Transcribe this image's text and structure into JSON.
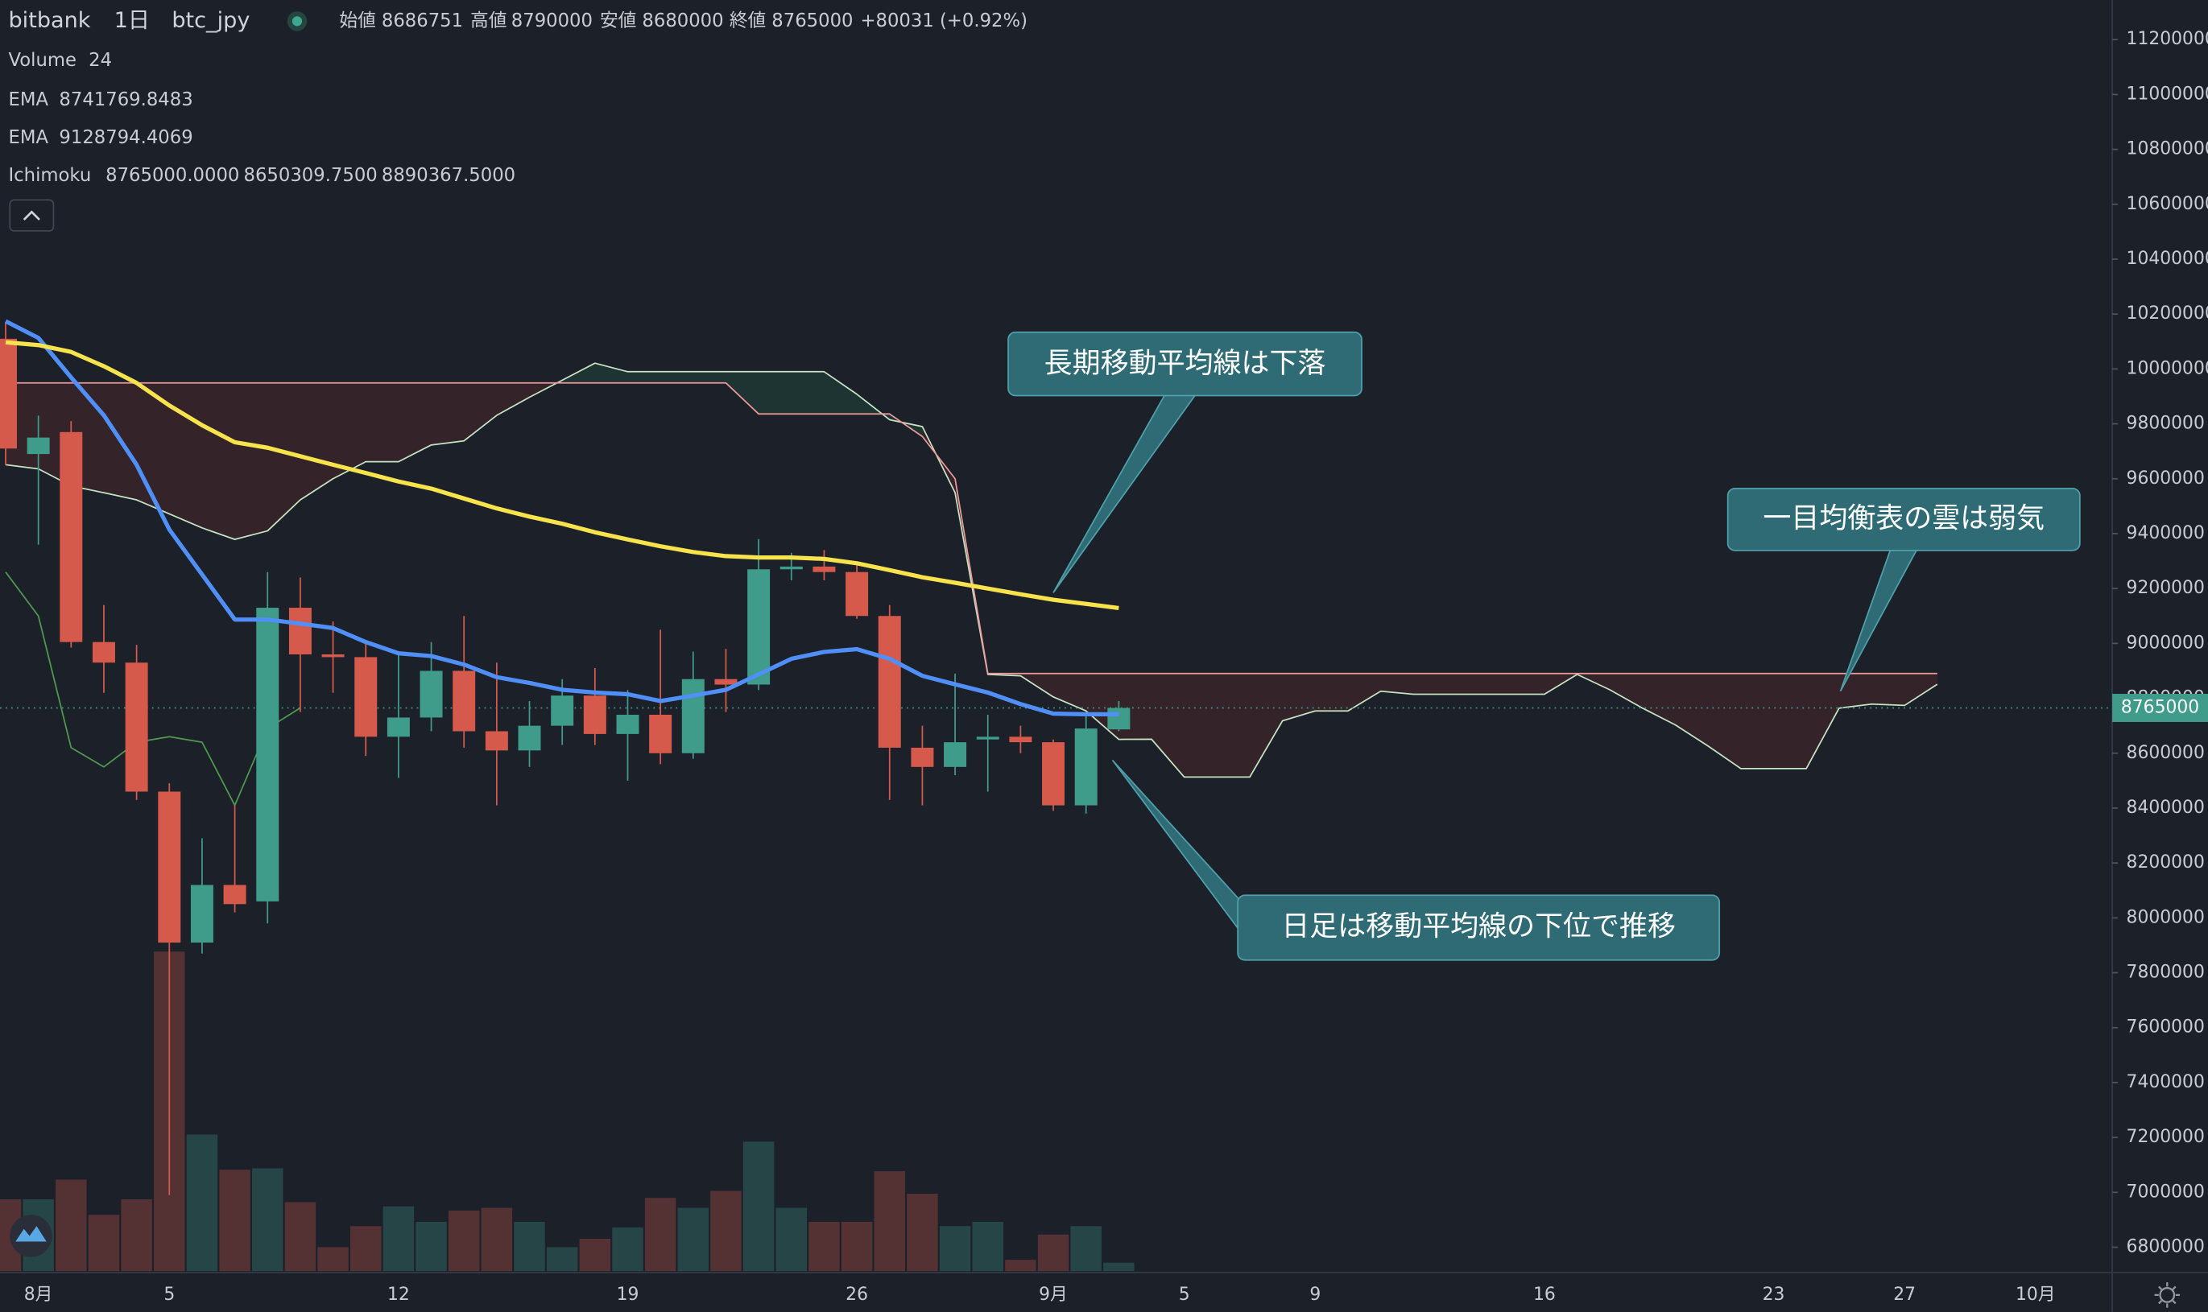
{
  "chart_data": {
    "type": "candlestick",
    "exchange": "bitbank",
    "interval": "1日",
    "symbol": "btc_jpy",
    "ohlc_names": [
      "始値",
      "高値",
      "安値",
      "終値"
    ],
    "change_label": "+80031 (+0.92%)",
    "categories": [
      null,
      "8月",
      null,
      null,
      null,
      "5",
      null,
      null,
      null,
      null,
      null,
      null,
      "12",
      null,
      null,
      null,
      null,
      null,
      null,
      "19",
      null,
      null,
      null,
      null,
      null,
      null,
      "26",
      null,
      null,
      null,
      null,
      null,
      "9月",
      null,
      null,
      null,
      "5",
      null,
      null,
      null,
      "9",
      null,
      null,
      null,
      null,
      null,
      null,
      "16",
      null,
      null,
      null,
      null,
      null,
      null,
      "23",
      null,
      null,
      null,
      "27",
      null,
      null,
      null,
      "10月",
      null,
      null
    ],
    "open": [
      10110000,
      9690000,
      9770000,
      9005000,
      8930000,
      8460000,
      7910000,
      8120000,
      8060000,
      9130000,
      8960000,
      8950000,
      8660000,
      8730000,
      8900000,
      8680000,
      8610000,
      8700000,
      8810000,
      8670000,
      8740000,
      8600000,
      8870000,
      8850000,
      9270000,
      9280000,
      9260000,
      9100000,
      8620000,
      8550000,
      8650000,
      8660000,
      8640000,
      8410000,
      8686751,
      null,
      null,
      null,
      null,
      null,
      null,
      null,
      null,
      null,
      null,
      null,
      null,
      null,
      null,
      null,
      null,
      null,
      null,
      null,
      null,
      null,
      null,
      null,
      null,
      null,
      null,
      null,
      null,
      null,
      null
    ],
    "high": [
      10170000,
      9830000,
      9810000,
      9140000,
      8995000,
      8490000,
      8290000,
      8410000,
      9260000,
      9240000,
      9080000,
      9010000,
      8970000,
      9005000,
      9100000,
      8930000,
      8790000,
      8870000,
      8910000,
      8830000,
      9050000,
      8970000,
      8980000,
      9380000,
      9330000,
      9340000,
      9290000,
      9140000,
      8700000,
      8890000,
      8740000,
      8700000,
      8650000,
      8740000,
      8790000,
      null,
      null,
      null,
      null,
      null,
      null,
      null,
      null,
      null,
      null,
      null,
      null,
      null,
      null,
      null,
      null,
      null,
      null,
      null,
      null,
      null,
      null,
      null,
      null,
      null,
      null,
      null,
      null,
      null,
      null
    ],
    "low": [
      9650000,
      9360000,
      8985000,
      8820000,
      8430000,
      6990000,
      7870000,
      8020000,
      7980000,
      8750000,
      8820000,
      8590000,
      8510000,
      8680000,
      8620000,
      8410000,
      8550000,
      8630000,
      8630000,
      8500000,
      8560000,
      8580000,
      8750000,
      8830000,
      9230000,
      9230000,
      9090000,
      8430000,
      8410000,
      8520000,
      8460000,
      8600000,
      8390000,
      8380000,
      8680000,
      null,
      null,
      null,
      null,
      null,
      null,
      null,
      null,
      null,
      null,
      null,
      null,
      null,
      null,
      null,
      null,
      null,
      null,
      null,
      null,
      null,
      null,
      null,
      null,
      null,
      null,
      null,
      null,
      null,
      null
    ],
    "close": [
      9710000,
      9750000,
      9005000,
      8930000,
      8460000,
      7910000,
      8120000,
      8050000,
      9130000,
      8960000,
      8950000,
      8660000,
      8730000,
      8900000,
      8680000,
      8610000,
      8700000,
      8810000,
      8670000,
      8740000,
      8600000,
      8870000,
      8850000,
      9270000,
      9280000,
      9260000,
      9100000,
      8620000,
      8550000,
      8640000,
      8660000,
      8640000,
      8410000,
      8690000,
      8765000,
      null,
      null,
      null,
      null,
      null,
      null,
      null,
      null,
      null,
      null,
      null,
      null,
      null,
      null,
      null,
      null,
      null,
      null,
      null,
      null,
      null,
      null,
      null,
      null,
      null,
      null,
      null,
      null,
      null,
      null
    ],
    "up_color": "#3f9b8a",
    "down_color": "#d65a4c",
    "volume": {
      "name": "Volume",
      "values": [
        204,
        204,
        260,
        160,
        204,
        908,
        388,
        288,
        292,
        196,
        68,
        128,
        184,
        140,
        172,
        180,
        140,
        68,
        92,
        124,
        208,
        180,
        228,
        368,
        180,
        140,
        140,
        284,
        220,
        128,
        140,
        32,
        104,
        128,
        24,
        null,
        null,
        null,
        null,
        null,
        null,
        null,
        null,
        null,
        null,
        null,
        null,
        null,
        null,
        null,
        null,
        null,
        null,
        null,
        null,
        null,
        null,
        null,
        null,
        null,
        null,
        null,
        null,
        null,
        null
      ]
    },
    "series": [
      {
        "name": "EMA",
        "color": "#4f8ff7",
        "values": [
          10174000,
          10113000,
          9969000,
          9831000,
          9651000,
          9415000,
          9251000,
          9087000,
          9087000,
          9072000,
          9056000,
          9005000,
          8964000,
          8954000,
          8923000,
          8877000,
          8856000,
          8831000,
          8821000,
          8815000,
          8790000,
          8810000,
          8831000,
          8887000,
          8944000,
          8969000,
          8979000,
          8944000,
          8882000,
          8851000,
          8821000,
          8779000,
          8744000,
          8742000,
          8741769.8483,
          null,
          null,
          null,
          null,
          null,
          null,
          null,
          null,
          null,
          null,
          null,
          null,
          null,
          null,
          null,
          null,
          null,
          null,
          null,
          null,
          null,
          null,
          null,
          null,
          null,
          null,
          null,
          null,
          null,
          null
        ]
      },
      {
        "name": "EMA",
        "color": "#f7e34b",
        "values": [
          10097000,
          10087000,
          10062000,
          10010000,
          9949000,
          9867000,
          9795000,
          9733000,
          9713000,
          9682000,
          9651000,
          9621000,
          9590000,
          9564000,
          9528000,
          9492000,
          9462000,
          9436000,
          9405000,
          9379000,
          9354000,
          9333000,
          9318000,
          9313000,
          9313000,
          9308000,
          9292000,
          9267000,
          9241000,
          9221000,
          9200000,
          9179000,
          9159000,
          9144000,
          9128794.4069,
          null,
          null,
          null,
          null,
          null,
          null,
          null,
          null,
          null,
          null,
          null,
          null,
          null,
          null,
          null,
          null,
          null,
          null,
          null,
          null,
          null,
          null,
          null,
          null,
          null,
          null,
          null,
          null,
          null,
          null
        ]
      }
    ],
    "ichimoku": {
      "name": "Ichimoku",
      "cloud_up_color": "#1f3a34",
      "cloud_down_color": "#3b2529",
      "lines": [
        {
          "color": "#4f9a4f",
          "legend_label": "8765000.0000",
          "values": [
            9260000,
            9100000,
            8620000,
            8550000,
            8640000,
            8660000,
            8640000,
            8410000,
            8690000,
            8765000,
            null,
            null,
            null,
            null,
            null,
            null,
            null,
            null,
            null,
            null,
            null,
            null,
            null,
            null,
            null,
            null,
            null,
            null,
            null,
            null,
            null,
            null,
            null,
            null,
            null,
            null,
            null,
            null,
            null,
            null,
            null,
            null,
            null,
            null,
            null,
            null,
            null,
            null,
            null,
            null,
            null,
            null,
            null,
            null,
            null,
            null,
            null,
            null,
            null,
            null,
            null,
            null,
            null,
            null,
            null
          ]
        },
        {
          "color": "#c5e3c2",
          "legend_label": "8650309.7500",
          "values": [
            9651000,
            9636000,
            9574000,
            9549000,
            9523000,
            9472000,
            9421000,
            9379000,
            9410000,
            9523000,
            9600000,
            9662000,
            9662000,
            9723000,
            9738000,
            9831000,
            9897000,
            9959000,
            10021000,
            9990000,
            9990000,
            9990000,
            9990000,
            9990000,
            9990000,
            9990000,
            9908000,
            9815000,
            9790000,
            9549000,
            8887000,
            8882000,
            8805000,
            8754000,
            8650309.75,
            8651000,
            8513000,
            8513000,
            8513000,
            8718000,
            8754000,
            8754000,
            8826000,
            8815000,
            8815000,
            8815000,
            8815000,
            8815000,
            8887000,
            8831000,
            8764000,
            8703000,
            8626000,
            8544000,
            8544000,
            8544000,
            8764000,
            8779000,
            8774000,
            8851000,
            null,
            null,
            null,
            null,
            null
          ]
        },
        {
          "color": "#ef9a9a",
          "legend_label": "8890367.5000",
          "values": [
            9949000,
            9949000,
            9949000,
            9949000,
            9949000,
            9949000,
            9949000,
            9949000,
            9949000,
            9949000,
            9949000,
            9949000,
            9949000,
            9949000,
            9949000,
            9949000,
            9949000,
            9949000,
            9949000,
            9949000,
            9949000,
            9949000,
            9949000,
            9836000,
            9836000,
            9836000,
            9836000,
            9836000,
            9754000,
            9600000,
            8890367.5,
            8890367.5,
            8890367.5,
            8890367.5,
            8890367.5,
            8890367.5,
            8890367.5,
            8890367.5,
            8890367.5,
            8890367.5,
            8890367.5,
            8890367.5,
            8890367.5,
            8890367.5,
            8890367.5,
            8890367.5,
            8890367.5,
            8890367.5,
            8890367.5,
            8890367.5,
            8890367.5,
            8890367.5,
            8890367.5,
            8890367.5,
            8890367.5,
            8890367.5,
            8890367.5,
            8890367.5,
            8890367.5,
            8890367.5,
            null,
            null,
            null,
            null,
            null
          ]
        }
      ]
    },
    "ylim": [
      6713000,
      11344000
    ],
    "yticks": [
      6800000,
      7000000,
      7200000,
      7400000,
      7600000,
      7800000,
      8000000,
      8200000,
      8400000,
      8600000,
      8800000,
      9000000,
      9200000,
      9400000,
      9600000,
      9800000,
      10000000,
      10200000,
      10400000,
      10600000,
      10800000,
      11000000,
      11200000
    ],
    "grid": false,
    "annotations": [
      "長期移動平均線は下落",
      "一目均衡表の雲は弱気",
      "日足は移動平均線の下位で推移"
    ]
  }
}
